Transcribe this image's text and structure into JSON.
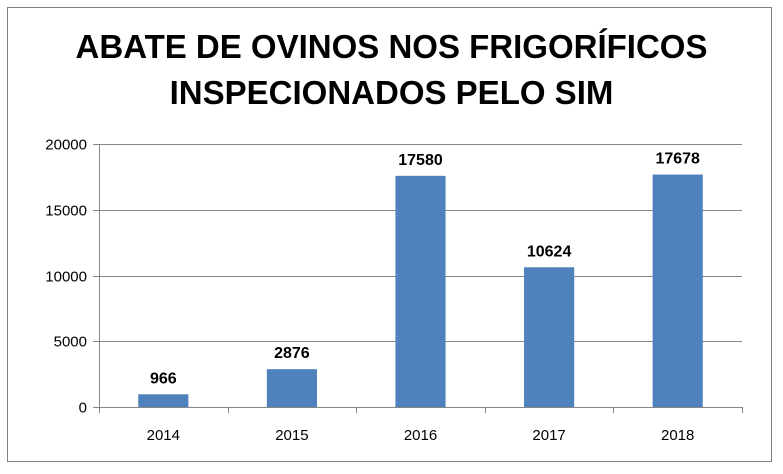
{
  "chart_data": {
    "type": "bar",
    "title_lines": [
      "ABATE DE OVINOS NOS FRIGORÍFICOS",
      "INSPECIONADOS PELO SIM"
    ],
    "categories": [
      "2014",
      "2015",
      "2016",
      "2017",
      "2018"
    ],
    "values": [
      966,
      2876,
      17580,
      10624,
      17678
    ],
    "data_labels": [
      "966",
      "2876",
      "17580",
      "10624",
      "17678"
    ],
    "y_ticks": [
      0,
      5000,
      10000,
      15000,
      20000
    ],
    "y_tick_labels": [
      "0",
      "5000",
      "10000",
      "15000",
      "20000"
    ],
    "ylim": [
      0,
      20000
    ],
    "grid": true,
    "legend": "none",
    "bar_color": "#4f81bd",
    "grid_color": "#878787"
  }
}
